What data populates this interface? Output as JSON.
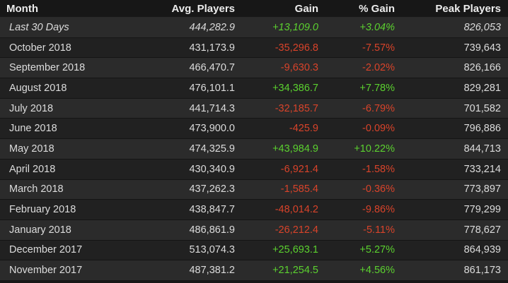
{
  "colors": {
    "positive": "#5bd12f",
    "negative": "#d9432a",
    "row_odd": "#2b2b2b",
    "row_even": "#212121"
  },
  "columns": [
    "Month",
    "Avg. Players",
    "Gain",
    "% Gain",
    "Peak Players"
  ],
  "rows": [
    {
      "month": "Last 30 Days",
      "avg": "444,282.9",
      "gain": "+13,109.0",
      "pct": "+3.04%",
      "peak": "826,053",
      "dir": "pos",
      "recent": true
    },
    {
      "month": "October 2018",
      "avg": "431,173.9",
      "gain": "-35,296.8",
      "pct": "-7.57%",
      "peak": "739,643",
      "dir": "neg"
    },
    {
      "month": "September 2018",
      "avg": "466,470.7",
      "gain": "-9,630.3",
      "pct": "-2.02%",
      "peak": "826,166",
      "dir": "neg"
    },
    {
      "month": "August 2018",
      "avg": "476,101.1",
      "gain": "+34,386.7",
      "pct": "+7.78%",
      "peak": "829,281",
      "dir": "pos"
    },
    {
      "month": "July 2018",
      "avg": "441,714.3",
      "gain": "-32,185.7",
      "pct": "-6.79%",
      "peak": "701,582",
      "dir": "neg"
    },
    {
      "month": "June 2018",
      "avg": "473,900.0",
      "gain": "-425.9",
      "pct": "-0.09%",
      "peak": "796,886",
      "dir": "neg"
    },
    {
      "month": "May 2018",
      "avg": "474,325.9",
      "gain": "+43,984.9",
      "pct": "+10.22%",
      "peak": "844,713",
      "dir": "pos"
    },
    {
      "month": "April 2018",
      "avg": "430,340.9",
      "gain": "-6,921.4",
      "pct": "-1.58%",
      "peak": "733,214",
      "dir": "neg"
    },
    {
      "month": "March 2018",
      "avg": "437,262.3",
      "gain": "-1,585.4",
      "pct": "-0.36%",
      "peak": "773,897",
      "dir": "neg"
    },
    {
      "month": "February 2018",
      "avg": "438,847.7",
      "gain": "-48,014.2",
      "pct": "-9.86%",
      "peak": "779,299",
      "dir": "neg"
    },
    {
      "month": "January 2018",
      "avg": "486,861.9",
      "gain": "-26,212.4",
      "pct": "-5.11%",
      "peak": "778,627",
      "dir": "neg"
    },
    {
      "month": "December 2017",
      "avg": "513,074.3",
      "gain": "+25,693.1",
      "pct": "+5.27%",
      "peak": "864,939",
      "dir": "pos"
    },
    {
      "month": "November 2017",
      "avg": "487,381.2",
      "gain": "+21,254.5",
      "pct": "+4.56%",
      "peak": "861,173",
      "dir": "pos"
    }
  ]
}
